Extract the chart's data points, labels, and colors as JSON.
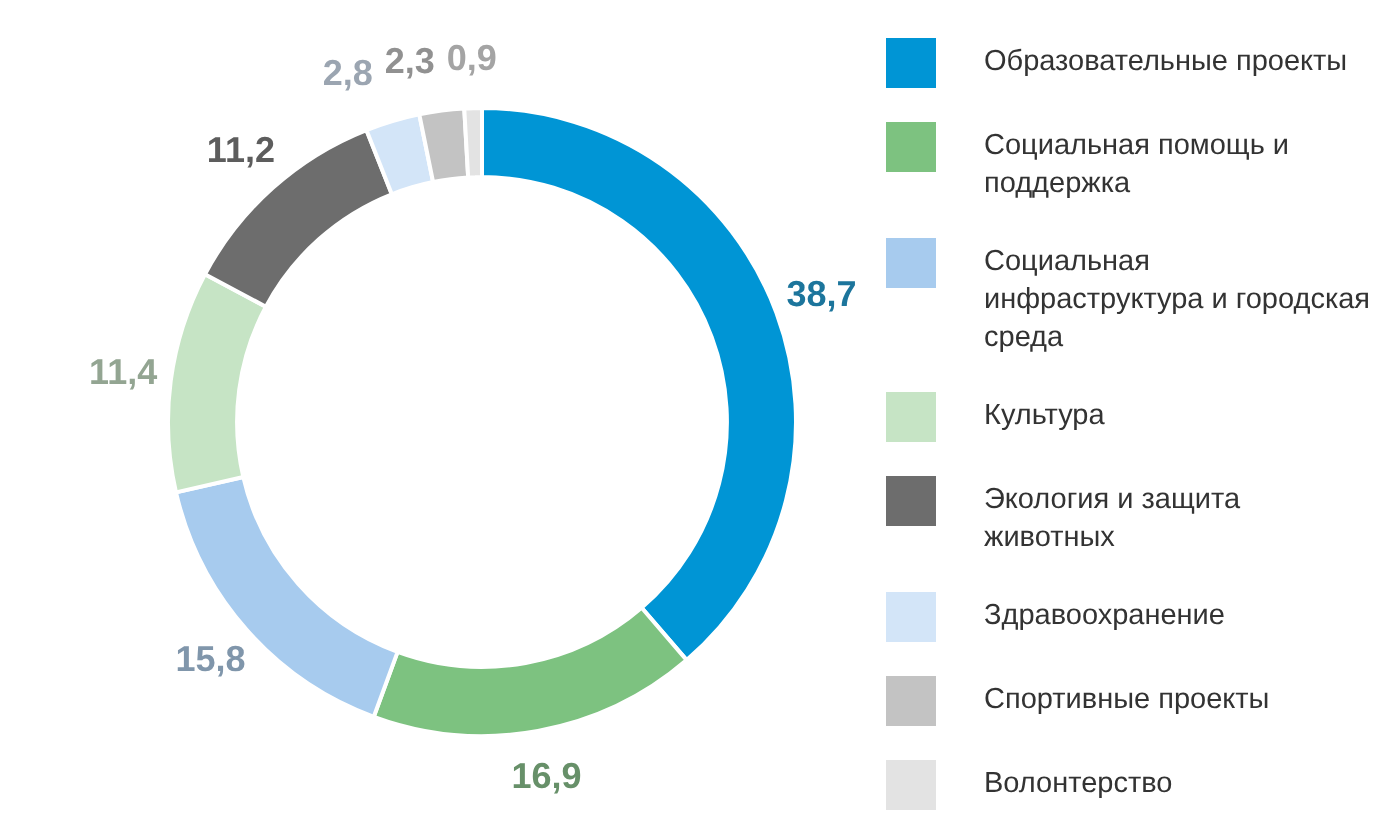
{
  "chart_data": {
    "type": "donut",
    "categories": [
      "Образовательные проекты",
      "Социальная помощь и поддержка",
      "Социальная инфраструктура и городская среда",
      "Культура",
      "Экология и защита животных",
      "Здравоохранение",
      "Спортивные проекты",
      "Волонтерство"
    ],
    "values": [
      38.7,
      16.9,
      15.8,
      11.4,
      11.2,
      2.8,
      2.3,
      0.9
    ],
    "value_labels": [
      "38,7",
      "16,9",
      "15,8",
      "11,4",
      "11,2",
      "2,8",
      "2,3",
      "0,9"
    ],
    "colors": [
      "#0095d5",
      "#7dc280",
      "#a7cbee",
      "#c6e4c5",
      "#6d6d6d",
      "#d3e5f8",
      "#c3c3c3",
      "#e3e3e3"
    ],
    "legend": "right"
  }
}
